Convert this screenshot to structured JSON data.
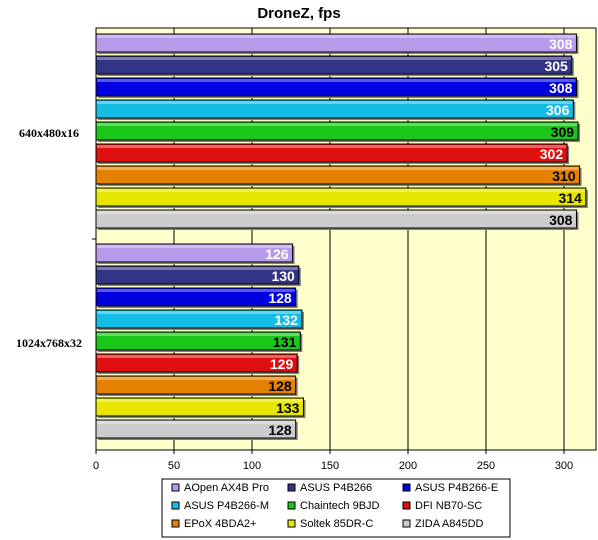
{
  "chart_data": {
    "type": "bar",
    "orientation": "horizontal",
    "title": "DroneZ, fps",
    "xlabel": "",
    "ylabel": "",
    "xlim": [
      0,
      300
    ],
    "xticks": [
      0,
      50,
      100,
      150,
      200,
      250,
      300
    ],
    "categories": [
      "640x480x16",
      "1024x768x32"
    ],
    "series": [
      {
        "name": "AOpen AX4B Pro",
        "color": "#b79bea",
        "label_color": "#ffffff",
        "values": [
          308,
          126
        ]
      },
      {
        "name": "ASUS P4B266",
        "color": "#333385",
        "label_color": "#ffffff",
        "values": [
          305,
          130
        ]
      },
      {
        "name": "ASUS P4B266-E",
        "color": "#0000e0",
        "label_color": "#ffffff",
        "values": [
          308,
          128
        ]
      },
      {
        "name": "ASUS P4B266-M",
        "color": "#14bde6",
        "label_color": "#ffffff",
        "values": [
          306,
          132
        ]
      },
      {
        "name": "Chaintech 9BJD",
        "color": "#19c619",
        "label_color": "#000000",
        "values": [
          309,
          131
        ]
      },
      {
        "name": "DFI NB70-SC",
        "color": "#e01010",
        "label_color": "#ffffff",
        "values": [
          302,
          129
        ]
      },
      {
        "name": "EPoX 4BDA2+",
        "color": "#e58000",
        "label_color": "#000000",
        "values": [
          310,
          128
        ]
      },
      {
        "name": "Soltek 85DR-C",
        "color": "#e6e600",
        "label_color": "#000000",
        "values": [
          314,
          133
        ]
      },
      {
        "name": "ZIDA A845DD",
        "color": "#cccccc",
        "label_color": "#000000",
        "values": [
          308,
          128
        ]
      }
    ],
    "grid": true,
    "legend_position": "bottom",
    "plot_background": "#ffffcc"
  }
}
